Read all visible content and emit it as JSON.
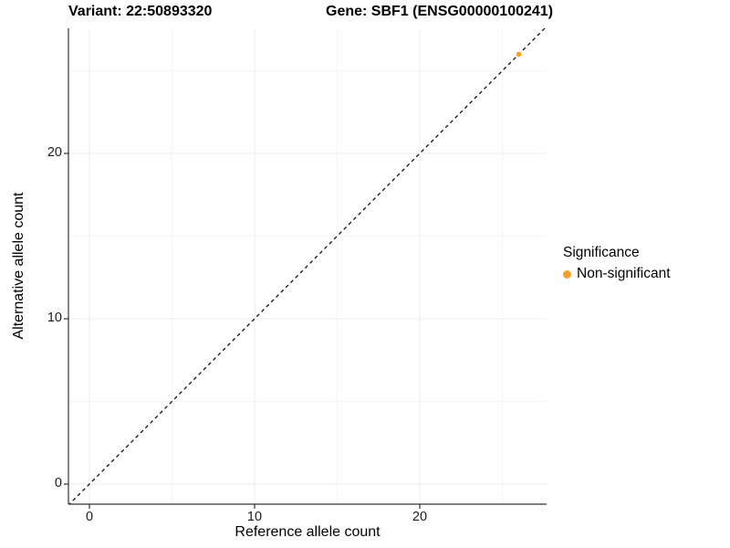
{
  "page": {
    "background": "#FFFFFF"
  },
  "chart_data": {
    "type": "scatter",
    "titles": {
      "left": "Variant: 22:50893320",
      "right": "Gene: SBF1 (ENSG00000100241)"
    },
    "xlabel": "Reference allele count",
    "ylabel": "Alternative allele count",
    "xlim": [
      -1.3,
      27.9
    ],
    "ylim": [
      -1.2,
      27.6
    ],
    "x_ticks": [
      0,
      10,
      20
    ],
    "y_ticks": [
      0,
      10,
      20
    ],
    "x_minor_ticks": [
      5,
      15,
      25
    ],
    "y_minor_ticks": [
      5,
      15,
      25
    ],
    "grid": {
      "major_color": "#ECECEC",
      "minor_color": "#F5F5F5",
      "visible": true
    },
    "axis_line_color": "#333333",
    "tick_color": "#333333",
    "identity_line": {
      "slope": 1,
      "intercept": 0,
      "style": "dashed",
      "color": "#000000"
    },
    "series": [
      {
        "name": "Non-significant",
        "color": "#F9A02B",
        "points": [
          {
            "x": 26,
            "y": 26
          }
        ]
      }
    ],
    "legend": {
      "title": "Significance",
      "position": "right",
      "items": [
        {
          "label": "Non-significant",
          "color": "#F9A02B"
        }
      ]
    }
  }
}
